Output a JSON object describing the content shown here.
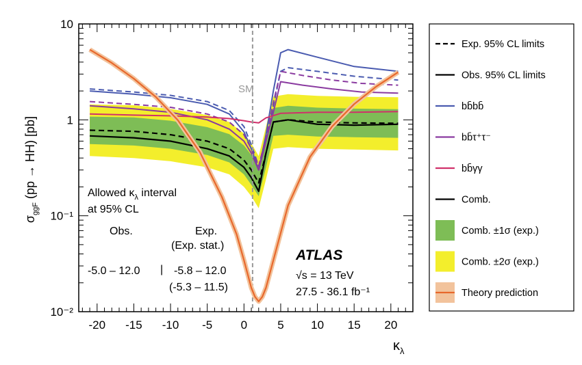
{
  "chart_data": {
    "type": "line",
    "xlabel": "κλ",
    "ylabel": "σggF (pp → HH) [pb]",
    "xlim": [
      -22.5,
      23
    ],
    "ylim": [
      0.01,
      10
    ],
    "yscale": "log",
    "grid": false,
    "legend_position": "outside-right",
    "x_ticks": [
      -20,
      -15,
      -10,
      -5,
      0,
      5,
      10,
      15,
      20
    ],
    "y_tick_labels": [
      "10⁻²",
      "10⁻¹",
      "1",
      "10"
    ],
    "sm_line": {
      "x": 1,
      "label": "SM"
    },
    "colors": {
      "bbbb": "#4a5bb0",
      "bbtautau": "#8a3aa0",
      "bbgammagamma": "#d0306a",
      "comb": "#000000",
      "band1": "#7ebd56",
      "band2": "#f3ee2c",
      "theory": "#e8682c",
      "theory_band": "#f2c39c"
    },
    "legend": [
      {
        "label": "Exp. 95% CL limits",
        "symbol": "dashed",
        "color": "#000000"
      },
      {
        "label": "Obs. 95% CL limits",
        "symbol": "solid",
        "color": "#000000"
      },
      {
        "label": "bb̄bb̄",
        "symbol": "solid",
        "color": "#4a5bb0"
      },
      {
        "label": "bb̄τ⁺τ⁻",
        "symbol": "solid",
        "color": "#8a3aa0"
      },
      {
        "label": "bb̄γγ",
        "symbol": "solid",
        "color": "#d0306a"
      },
      {
        "label": "Comb.",
        "symbol": "solid",
        "color": "#000000"
      },
      {
        "label": "Comb. ±1σ (exp.)",
        "symbol": "box",
        "color": "#7ebd56"
      },
      {
        "label": "Comb. ±2σ (exp.)",
        "symbol": "box",
        "color": "#f3ee2c"
      },
      {
        "label": "Theory prediction",
        "symbol": "theory",
        "color": "#e8682c"
      }
    ],
    "annotations": {
      "interval_title_1": "Allowed κλ interval",
      "interval_title_2": "at 95% CL",
      "obs_header": "Obs.",
      "exp_header": "Exp.",
      "exp_stat_header": "(Exp. stat.)",
      "obs_value": "-5.0 – 12.0",
      "separator": "|",
      "exp_value": "-5.8 – 12.0",
      "exp_stat_value": "(-5.3 – 11.5)",
      "experiment": "ATLAS",
      "energy": "√s = 13 TeV",
      "luminosity": "27.5 - 36.1 fb⁻¹"
    },
    "series": [
      {
        "name": "Theory prediction",
        "color": "#e8682c",
        "style": "theory",
        "x": [
          -21,
          -18,
          -15,
          -12,
          -9,
          -6,
          -3,
          -1,
          0,
          1,
          1.5,
          2,
          2.5,
          3,
          4,
          6,
          9,
          12,
          15,
          18,
          21
        ],
        "values": [
          5.4,
          3.92,
          2.69,
          1.73,
          0.99,
          0.46,
          0.157,
          0.064,
          0.0344,
          0.0178,
          0.0143,
          0.0128,
          0.0143,
          0.0178,
          0.0343,
          0.128,
          0.411,
          0.854,
          1.46,
          2.22,
          3.14
        ]
      },
      {
        "name": "bb̄bb̄ Exp.",
        "color": "#4a5bb0",
        "style": "dashed",
        "x": [
          -21,
          -15,
          -10,
          -5,
          -2,
          0,
          1,
          2,
          3,
          4,
          5,
          6,
          10,
          15,
          21
        ],
        "values": [
          2.1,
          1.95,
          1.8,
          1.55,
          1.25,
          0.85,
          0.55,
          0.33,
          0.65,
          1.4,
          3.2,
          3.5,
          3.2,
          2.85,
          2.6
        ]
      },
      {
        "name": "bb̄bb̄ Obs.",
        "color": "#4a5bb0",
        "style": "solid",
        "x": [
          -21,
          -15,
          -10,
          -5,
          -2,
          0,
          1,
          2,
          3,
          4,
          5,
          6,
          10,
          15,
          21
        ],
        "values": [
          2.0,
          1.85,
          1.7,
          1.45,
          1.15,
          0.75,
          0.5,
          0.3,
          0.7,
          2.0,
          5.0,
          5.4,
          4.5,
          3.6,
          3.2
        ]
      },
      {
        "name": "bb̄τ⁺τ⁻ Exp.",
        "color": "#8a3aa0",
        "style": "dashed",
        "x": [
          -21,
          -15,
          -10,
          -5,
          -2,
          0,
          1,
          2,
          3,
          4,
          5,
          8,
          12,
          16,
          21
        ],
        "values": [
          1.55,
          1.45,
          1.35,
          1.15,
          0.95,
          0.7,
          0.5,
          0.33,
          0.65,
          1.5,
          3.2,
          2.9,
          2.6,
          2.4,
          2.3
        ]
      },
      {
        "name": "bb̄τ⁺τ⁻ Obs.",
        "color": "#8a3aa0",
        "style": "solid",
        "x": [
          -21,
          -15,
          -10,
          -5,
          -2,
          0,
          1,
          2,
          3,
          4,
          5,
          8,
          12,
          16,
          21
        ],
        "values": [
          1.4,
          1.3,
          1.2,
          1.0,
          0.8,
          0.6,
          0.45,
          0.3,
          0.6,
          1.2,
          2.5,
          2.3,
          2.1,
          1.95,
          1.9
        ]
      },
      {
        "name": "bb̄γγ",
        "color": "#d0306a",
        "style": "solid",
        "x": [
          -21,
          -15,
          -10,
          -5,
          -2,
          0,
          1,
          2,
          3,
          5,
          10,
          15,
          21
        ],
        "values": [
          1.15,
          1.12,
          1.1,
          1.07,
          1.03,
          0.98,
          0.95,
          0.93,
          1.05,
          1.17,
          1.2,
          1.2,
          1.22
        ]
      },
      {
        "name": "Comb. Exp.",
        "color": "#000000",
        "style": "dashed",
        "x": [
          -21,
          -15,
          -10,
          -5,
          -2,
          0,
          1,
          2,
          3,
          4,
          6,
          10,
          15,
          21
        ],
        "values": [
          0.78,
          0.76,
          0.7,
          0.6,
          0.5,
          0.38,
          0.3,
          0.22,
          0.45,
          0.95,
          1.0,
          0.95,
          0.93,
          0.92
        ]
      },
      {
        "name": "Comb. Obs.",
        "color": "#000000",
        "style": "solid",
        "x": [
          -21,
          -15,
          -10,
          -5,
          -2,
          0,
          1,
          2,
          3,
          4,
          6,
          10,
          15,
          21
        ],
        "values": [
          0.68,
          0.65,
          0.6,
          0.5,
          0.42,
          0.32,
          0.25,
          0.18,
          0.45,
          0.95,
          1.0,
          0.9,
          0.88,
          0.9
        ]
      }
    ],
    "bands": [
      {
        "name": "Comb. ±2σ (exp.)",
        "color": "#f3ee2c",
        "x": [
          -21,
          -15,
          -10,
          -5,
          -2,
          0,
          1,
          2,
          3,
          4,
          6,
          10,
          15,
          21
        ],
        "low": [
          0.42,
          0.4,
          0.37,
          0.32,
          0.27,
          0.2,
          0.16,
          0.12,
          0.24,
          0.5,
          0.52,
          0.5,
          0.49,
          0.48
        ],
        "high": [
          1.45,
          1.42,
          1.3,
          1.12,
          0.95,
          0.72,
          0.57,
          0.42,
          0.85,
          1.75,
          1.85,
          1.78,
          1.74,
          1.72
        ]
      },
      {
        "name": "Comb. ±1σ (exp.)",
        "color": "#7ebd56",
        "x": [
          -21,
          -15,
          -10,
          -5,
          -2,
          0,
          1,
          2,
          3,
          4,
          6,
          10,
          15,
          21
        ],
        "low": [
          0.56,
          0.54,
          0.5,
          0.43,
          0.36,
          0.27,
          0.21,
          0.16,
          0.32,
          0.68,
          0.7,
          0.67,
          0.66,
          0.65
        ],
        "high": [
          1.08,
          1.06,
          0.98,
          0.84,
          0.71,
          0.54,
          0.43,
          0.31,
          0.64,
          1.33,
          1.4,
          1.34,
          1.31,
          1.29
        ]
      }
    ]
  }
}
